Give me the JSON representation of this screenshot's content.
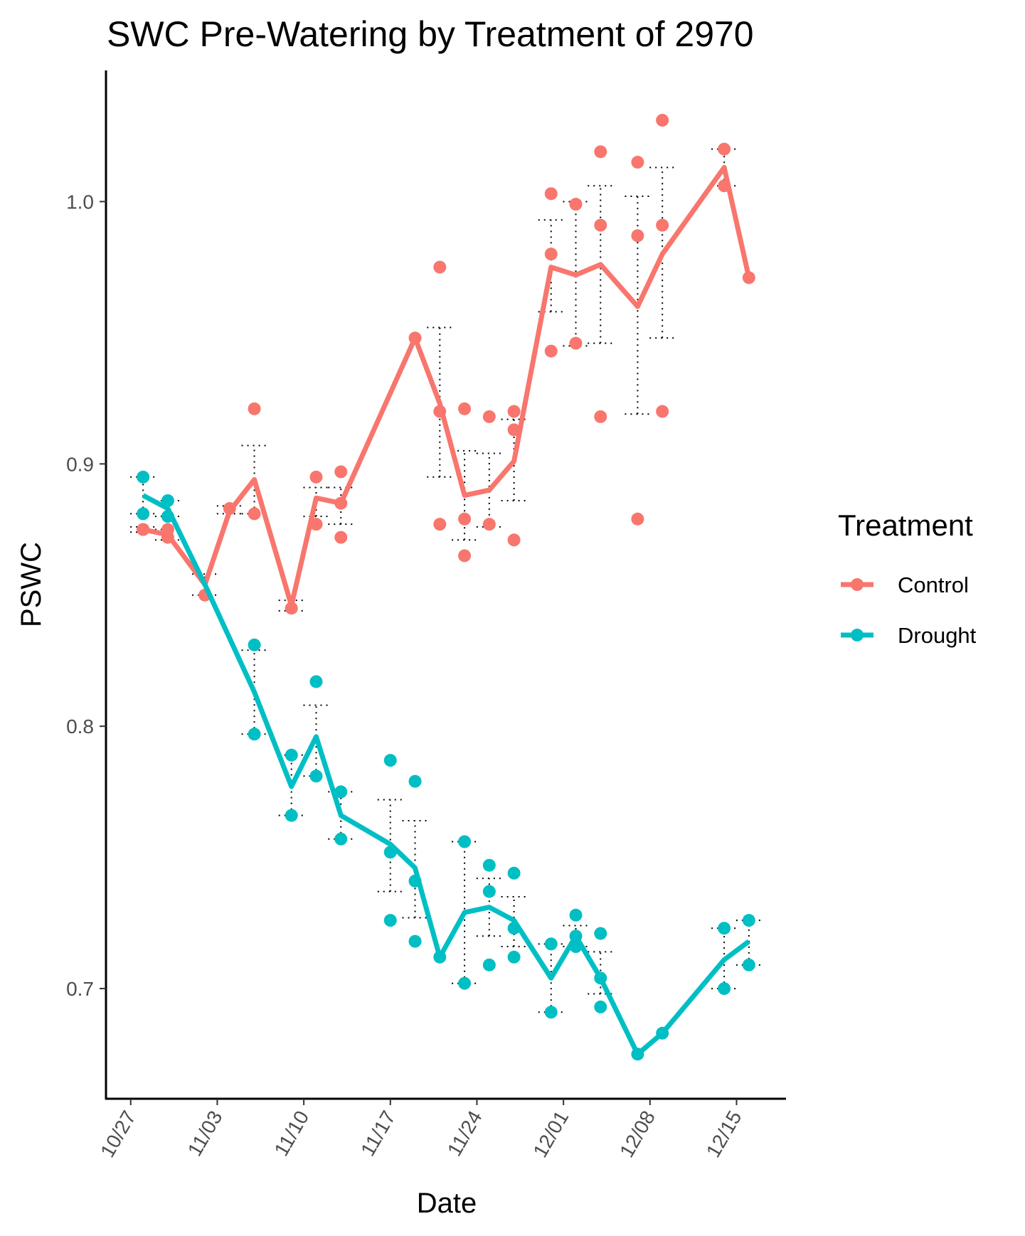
{
  "chart_data": {
    "type": "line",
    "title": "SWC Pre-Watering by Treatment of 2970",
    "xlabel": "Date",
    "ylabel": "PSWC",
    "x_tick_labels": [
      "10/27",
      "11/03",
      "11/10",
      "11/17",
      "11/24",
      "12/01",
      "12/08",
      "12/15"
    ],
    "x_tick_dates": [
      "2021-10-27",
      "2021-11-03",
      "2021-11-10",
      "2021-11-17",
      "2021-11-24",
      "2021-12-01",
      "2021-12-08",
      "2021-12-15"
    ],
    "xlim": [
      "2021-10-25",
      "2021-12-19"
    ],
    "y_ticks": [
      0.7,
      0.8,
      0.9,
      1.0
    ],
    "y_tick_labels": [
      "0.7",
      "0.8",
      "0.9",
      "1.0"
    ],
    "ylim": [
      0.658,
      1.05
    ],
    "grid": false,
    "legend": {
      "title": "Treatment",
      "position": "right"
    },
    "series": [
      {
        "name": "Control",
        "color": "#F8766D",
        "mean": [
          {
            "x": "2021-10-28",
            "y": 0.875
          },
          {
            "x": "2021-10-30",
            "y": 0.873
          },
          {
            "x": "2021-11-02",
            "y": 0.854
          },
          {
            "x": "2021-11-04",
            "y": 0.882
          },
          {
            "x": "2021-11-06",
            "y": 0.894
          },
          {
            "x": "2021-11-09",
            "y": 0.846
          },
          {
            "x": "2021-11-11",
            "y": 0.887
          },
          {
            "x": "2021-11-13",
            "y": 0.885
          },
          {
            "x": "2021-11-19",
            "y": 0.948
          },
          {
            "x": "2021-11-21",
            "y": 0.923
          },
          {
            "x": "2021-11-23",
            "y": 0.888
          },
          {
            "x": "2021-11-25",
            "y": 0.89
          },
          {
            "x": "2021-11-27",
            "y": 0.901
          },
          {
            "x": "2021-11-30",
            "y": 0.975
          },
          {
            "x": "2021-12-02",
            "y": 0.972
          },
          {
            "x": "2021-12-04",
            "y": 0.976
          },
          {
            "x": "2021-12-07",
            "y": 0.96
          },
          {
            "x": "2021-12-09",
            "y": 0.98
          },
          {
            "x": "2021-12-14",
            "y": 1.013
          },
          {
            "x": "2021-12-16",
            "y": 0.971
          }
        ],
        "points": [
          {
            "x": "2021-10-28",
            "y": 0.875
          },
          {
            "x": "2021-10-28",
            "y": 0.875
          },
          {
            "x": "2021-10-30",
            "y": 0.875
          },
          {
            "x": "2021-10-30",
            "y": 0.872
          },
          {
            "x": "2021-11-02",
            "y": 0.85
          },
          {
            "x": "2021-11-04",
            "y": 0.883
          },
          {
            "x": "2021-11-06",
            "y": 0.921
          },
          {
            "x": "2021-11-06",
            "y": 0.881
          },
          {
            "x": "2021-11-09",
            "y": 0.845
          },
          {
            "x": "2021-11-11",
            "y": 0.895
          },
          {
            "x": "2021-11-11",
            "y": 0.877
          },
          {
            "x": "2021-11-13",
            "y": 0.897
          },
          {
            "x": "2021-11-13",
            "y": 0.885
          },
          {
            "x": "2021-11-13",
            "y": 0.872
          },
          {
            "x": "2021-11-19",
            "y": 0.948
          },
          {
            "x": "2021-11-21",
            "y": 0.975
          },
          {
            "x": "2021-11-21",
            "y": 0.92
          },
          {
            "x": "2021-11-21",
            "y": 0.877
          },
          {
            "x": "2021-11-23",
            "y": 0.921
          },
          {
            "x": "2021-11-23",
            "y": 0.879
          },
          {
            "x": "2021-11-23",
            "y": 0.865
          },
          {
            "x": "2021-11-25",
            "y": 0.918
          },
          {
            "x": "2021-11-25",
            "y": 0.877
          },
          {
            "x": "2021-11-27",
            "y": 0.92
          },
          {
            "x": "2021-11-27",
            "y": 0.913
          },
          {
            "x": "2021-11-27",
            "y": 0.871
          },
          {
            "x": "2021-11-30",
            "y": 1.003
          },
          {
            "x": "2021-11-30",
            "y": 0.98
          },
          {
            "x": "2021-11-30",
            "y": 0.943
          },
          {
            "x": "2021-12-02",
            "y": 0.999
          },
          {
            "x": "2021-12-02",
            "y": 0.946
          },
          {
            "x": "2021-12-04",
            "y": 1.019
          },
          {
            "x": "2021-12-04",
            "y": 0.991
          },
          {
            "x": "2021-12-04",
            "y": 0.918
          },
          {
            "x": "2021-12-07",
            "y": 1.015
          },
          {
            "x": "2021-12-07",
            "y": 0.987
          },
          {
            "x": "2021-12-07",
            "y": 0.879
          },
          {
            "x": "2021-12-09",
            "y": 1.031
          },
          {
            "x": "2021-12-09",
            "y": 0.991
          },
          {
            "x": "2021-12-09",
            "y": 0.92
          },
          {
            "x": "2021-12-14",
            "y": 1.02
          },
          {
            "x": "2021-12-14",
            "y": 1.006
          },
          {
            "x": "2021-12-16",
            "y": 0.971
          }
        ],
        "error_bars": [
          {
            "x": "2021-10-28",
            "low": 0.874,
            "high": 0.876
          },
          {
            "x": "2021-10-30",
            "low": 0.871,
            "high": 0.875
          },
          {
            "x": "2021-11-02",
            "low": 0.85,
            "high": 0.858
          },
          {
            "x": "2021-11-04",
            "low": 0.881,
            "high": 0.884
          },
          {
            "x": "2021-11-06",
            "low": 0.881,
            "high": 0.907
          },
          {
            "x": "2021-11-09",
            "low": 0.844,
            "high": 0.848
          },
          {
            "x": "2021-11-11",
            "low": 0.88,
            "high": 0.891
          },
          {
            "x": "2021-11-13",
            "low": 0.877,
            "high": 0.891
          },
          {
            "x": "2021-11-21",
            "low": 0.895,
            "high": 0.952
          },
          {
            "x": "2021-11-23",
            "low": 0.871,
            "high": 0.905
          },
          {
            "x": "2021-11-25",
            "low": 0.876,
            "high": 0.904
          },
          {
            "x": "2021-11-27",
            "low": 0.886,
            "high": 0.917
          },
          {
            "x": "2021-11-30",
            "low": 0.958,
            "high": 0.993
          },
          {
            "x": "2021-12-02",
            "low": 0.945,
            "high": 1.0
          },
          {
            "x": "2021-12-04",
            "low": 0.946,
            "high": 1.006
          },
          {
            "x": "2021-12-07",
            "low": 0.919,
            "high": 1.002
          },
          {
            "x": "2021-12-09",
            "low": 0.948,
            "high": 1.013
          },
          {
            "x": "2021-12-14",
            "low": 1.006,
            "high": 1.02
          }
        ]
      },
      {
        "name": "Drought",
        "color": "#00BFC4",
        "mean": [
          {
            "x": "2021-10-28",
            "y": 0.888
          },
          {
            "x": "2021-10-30",
            "y": 0.883
          },
          {
            "x": "2021-11-02",
            "y": 0.854
          },
          {
            "x": "2021-11-06",
            "y": 0.813
          },
          {
            "x": "2021-11-09",
            "y": 0.777
          },
          {
            "x": "2021-11-11",
            "y": 0.796
          },
          {
            "x": "2021-11-13",
            "y": 0.766
          },
          {
            "x": "2021-11-17",
            "y": 0.755
          },
          {
            "x": "2021-11-19",
            "y": 0.746
          },
          {
            "x": "2021-11-21",
            "y": 0.712
          },
          {
            "x": "2021-11-23",
            "y": 0.729
          },
          {
            "x": "2021-11-25",
            "y": 0.731
          },
          {
            "x": "2021-11-27",
            "y": 0.726
          },
          {
            "x": "2021-11-30",
            "y": 0.704
          },
          {
            "x": "2021-12-02",
            "y": 0.72
          },
          {
            "x": "2021-12-04",
            "y": 0.704
          },
          {
            "x": "2021-12-07",
            "y": 0.675
          },
          {
            "x": "2021-12-09",
            "y": 0.683
          },
          {
            "x": "2021-12-14",
            "y": 0.711
          },
          {
            "x": "2021-12-16",
            "y": 0.718
          }
        ],
        "points": [
          {
            "x": "2021-10-28",
            "y": 0.895
          },
          {
            "x": "2021-10-28",
            "y": 0.881
          },
          {
            "x": "2021-10-30",
            "y": 0.886
          },
          {
            "x": "2021-10-30",
            "y": 0.88
          },
          {
            "x": "2021-11-06",
            "y": 0.831
          },
          {
            "x": "2021-11-06",
            "y": 0.797
          },
          {
            "x": "2021-11-09",
            "y": 0.789
          },
          {
            "x": "2021-11-09",
            "y": 0.766
          },
          {
            "x": "2021-11-11",
            "y": 0.817
          },
          {
            "x": "2021-11-11",
            "y": 0.781
          },
          {
            "x": "2021-11-13",
            "y": 0.775
          },
          {
            "x": "2021-11-13",
            "y": 0.757
          },
          {
            "x": "2021-11-17",
            "y": 0.787
          },
          {
            "x": "2021-11-17",
            "y": 0.752
          },
          {
            "x": "2021-11-17",
            "y": 0.726
          },
          {
            "x": "2021-11-19",
            "y": 0.779
          },
          {
            "x": "2021-11-19",
            "y": 0.741
          },
          {
            "x": "2021-11-19",
            "y": 0.718
          },
          {
            "x": "2021-11-21",
            "y": 0.712
          },
          {
            "x": "2021-11-23",
            "y": 0.756
          },
          {
            "x": "2021-11-23",
            "y": 0.702
          },
          {
            "x": "2021-11-25",
            "y": 0.747
          },
          {
            "x": "2021-11-25",
            "y": 0.737
          },
          {
            "x": "2021-11-25",
            "y": 0.709
          },
          {
            "x": "2021-11-27",
            "y": 0.744
          },
          {
            "x": "2021-11-27",
            "y": 0.723
          },
          {
            "x": "2021-11-27",
            "y": 0.712
          },
          {
            "x": "2021-11-30",
            "y": 0.717
          },
          {
            "x": "2021-11-30",
            "y": 0.691
          },
          {
            "x": "2021-12-02",
            "y": 0.728
          },
          {
            "x": "2021-12-02",
            "y": 0.72
          },
          {
            "x": "2021-12-02",
            "y": 0.716
          },
          {
            "x": "2021-12-04",
            "y": 0.721
          },
          {
            "x": "2021-12-04",
            "y": 0.704
          },
          {
            "x": "2021-12-04",
            "y": 0.693
          },
          {
            "x": "2021-12-07",
            "y": 0.675
          },
          {
            "x": "2021-12-09",
            "y": 0.683
          },
          {
            "x": "2021-12-14",
            "y": 0.723
          },
          {
            "x": "2021-12-14",
            "y": 0.7
          },
          {
            "x": "2021-12-16",
            "y": 0.726
          },
          {
            "x": "2021-12-16",
            "y": 0.709
          }
        ],
        "error_bars": [
          {
            "x": "2021-10-28",
            "low": 0.881,
            "high": 0.895
          },
          {
            "x": "2021-10-30",
            "low": 0.88,
            "high": 0.886
          },
          {
            "x": "2021-11-06",
            "low": 0.797,
            "high": 0.829
          },
          {
            "x": "2021-11-09",
            "low": 0.766,
            "high": 0.789
          },
          {
            "x": "2021-11-11",
            "low": 0.781,
            "high": 0.808
          },
          {
            "x": "2021-11-13",
            "low": 0.757,
            "high": 0.775
          },
          {
            "x": "2021-11-17",
            "low": 0.737,
            "high": 0.772
          },
          {
            "x": "2021-11-19",
            "low": 0.727,
            "high": 0.764
          },
          {
            "x": "2021-11-23",
            "low": 0.702,
            "high": 0.756
          },
          {
            "x": "2021-11-25",
            "low": 0.72,
            "high": 0.742
          },
          {
            "x": "2021-11-27",
            "low": 0.716,
            "high": 0.735
          },
          {
            "x": "2021-11-30",
            "low": 0.691,
            "high": 0.717
          },
          {
            "x": "2021-12-02",
            "low": 0.716,
            "high": 0.724
          },
          {
            "x": "2021-12-04",
            "low": 0.698,
            "high": 0.714
          },
          {
            "x": "2021-12-14",
            "low": 0.7,
            "high": 0.723
          },
          {
            "x": "2021-12-16",
            "low": 0.709,
            "high": 0.726
          }
        ]
      }
    ]
  }
}
